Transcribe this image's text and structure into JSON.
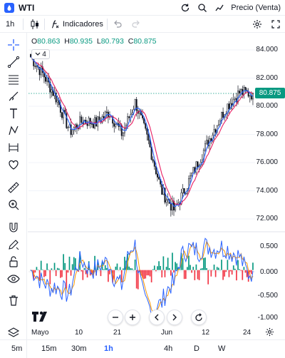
{
  "header": {
    "symbol": "WTI",
    "price_type": "Precio (Venta)",
    "icons": [
      "oil-icon",
      "refresh-icon",
      "search-icon",
      "price-type-icon"
    ]
  },
  "toolbar": {
    "interval": "1h",
    "indicators": "Indicadores",
    "icons": [
      "candles-icon",
      "indicators-icon",
      "undo-icon",
      "redo-icon",
      "settings-icon",
      "fullscreen-icon"
    ]
  },
  "legend": {
    "o_label": "O",
    "o": "80.863",
    "h_label": "H",
    "h": "80.935",
    "l_label": "L",
    "l": "80.793",
    "c_label": "C",
    "c": "80.875",
    "studies_count": "4"
  },
  "price_axis": {
    "labels": [
      "84.000",
      "82.000",
      "80.000",
      "78.000",
      "76.000",
      "74.000",
      "72.000"
    ],
    "current": "80.875"
  },
  "oscillator_axis": {
    "labels": [
      "0.500",
      "0.000",
      "-0.500",
      "-1.000"
    ]
  },
  "time_axis": {
    "labels": [
      "Mayo",
      "10",
      "21",
      "Jun",
      "12",
      "24"
    ]
  },
  "intervals": {
    "items": [
      "5m",
      "15m",
      "30m",
      "1h",
      "4h",
      "D",
      "W"
    ],
    "active": "1h"
  },
  "colors": {
    "up": "#089981",
    "down": "#f23645",
    "candle": "#131722",
    "ma_fast": "#2962ff",
    "ma_slow": "#e91e63",
    "osc_fast": "#2962ff",
    "osc_slow": "#ff9800",
    "accent": "#2962ff"
  },
  "chart_data": {
    "type": "line",
    "x": [
      "Mayo",
      "10",
      "21",
      "Jun",
      "12",
      "24"
    ],
    "price_series_approx": [
      83.5,
      82.2,
      80.5,
      78.2,
      79.0,
      78.8,
      79.6,
      78.0,
      80.3,
      77.5,
      74.0,
      72.6,
      74.5,
      76.4,
      78.3,
      80.0,
      81.0,
      80.875
    ],
    "ylim": [
      71.5,
      84.5
    ],
    "oscillator_ylim": [
      -1.05,
      0.75
    ]
  }
}
